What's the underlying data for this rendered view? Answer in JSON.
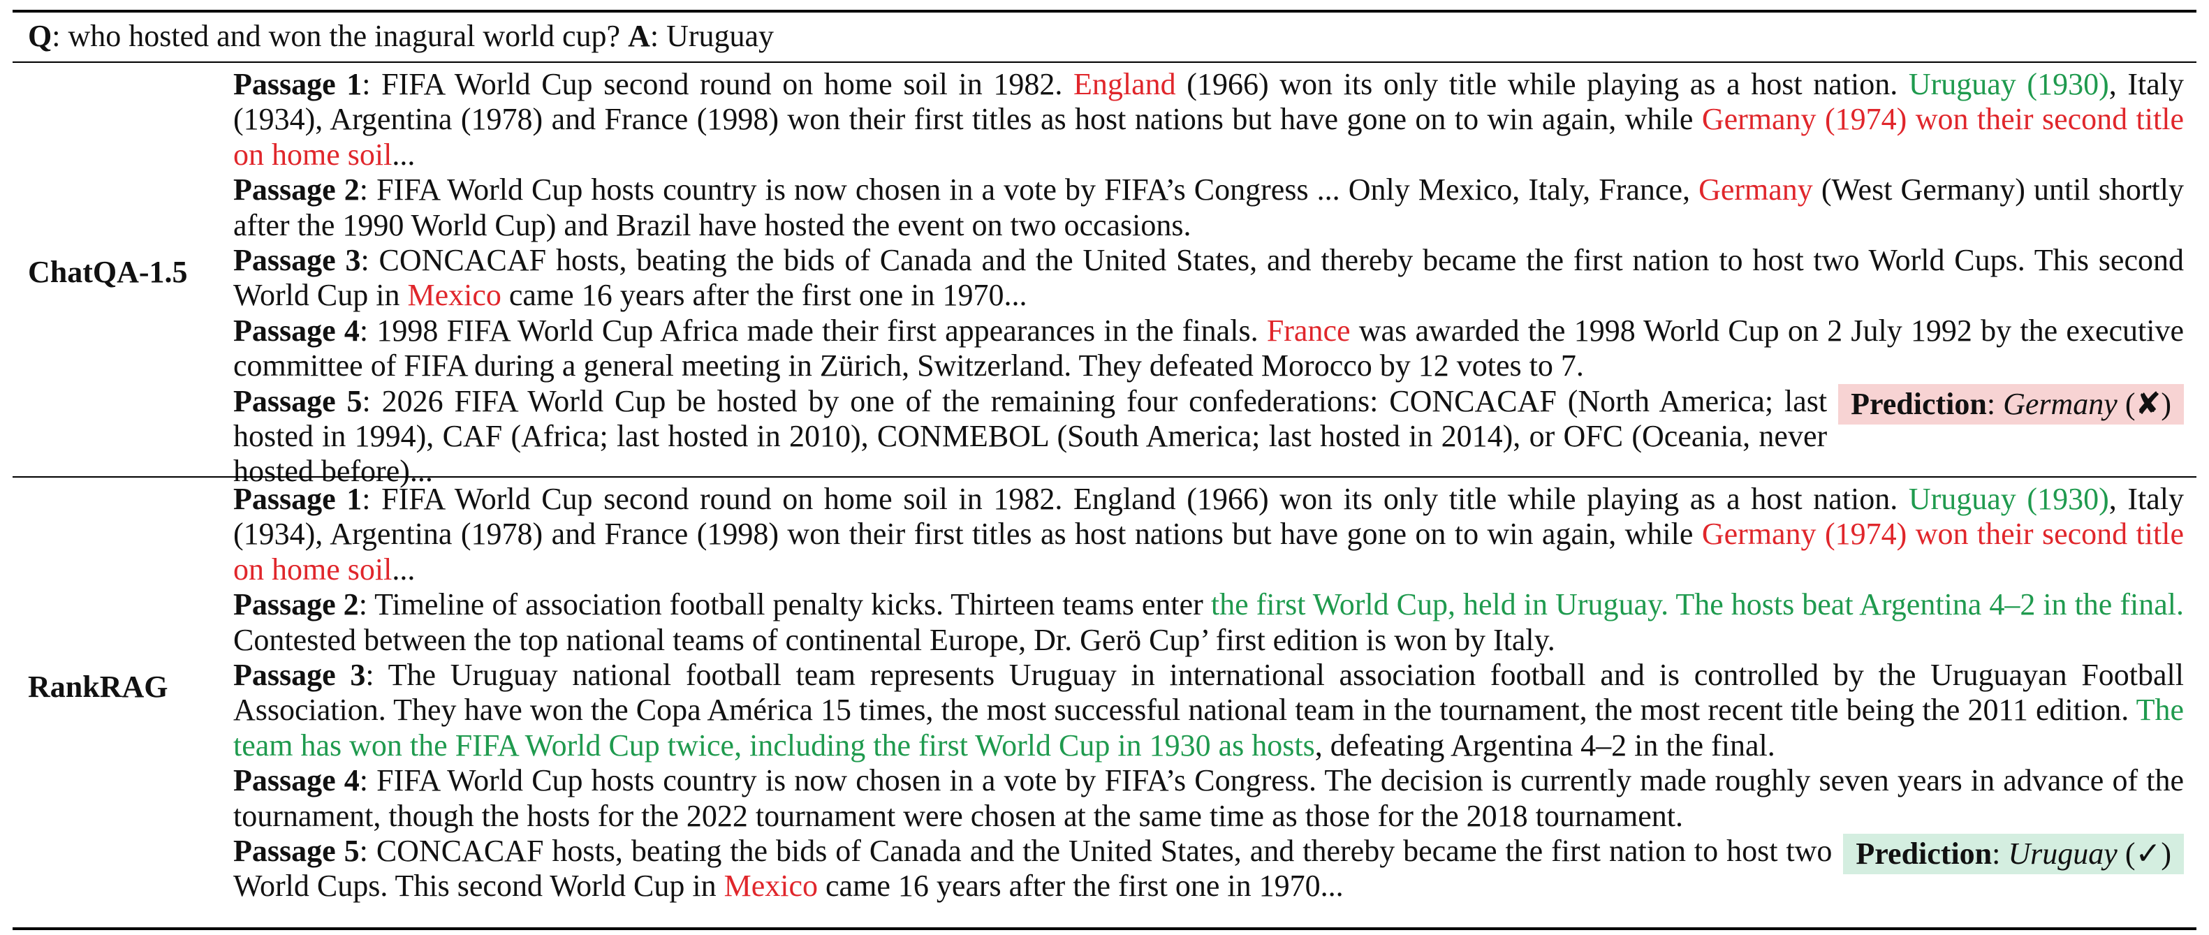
{
  "question": {
    "q_label": "Q",
    "q_text": "who hosted and won the inagural world cup?",
    "a_label": "A",
    "a_text": "Uruguay"
  },
  "prediction_label": "Prediction",
  "colors": {
    "wrong": "#e0262b",
    "correct": "#1f9a4e",
    "bad_bg": "#f7d3d3",
    "good_bg": "#d4eee0"
  },
  "sections": [
    {
      "model": "ChatQA-1.5",
      "prediction": {
        "answer": "Germany",
        "mark": "✘",
        "status": "wrong"
      },
      "passages": [
        {
          "title": "Passage 1",
          "segments": [
            {
              "t": "FIFA World Cup second round on home soil in 1982. "
            },
            {
              "t": "England",
              "c": "red"
            },
            {
              "t": " (1966) won its only title while playing as a host nation. "
            },
            {
              "t": "Uruguay (1930)",
              "c": "green"
            },
            {
              "t": ", Italy (1934), Argentina (1978) and France (1998) won their first titles as host nations but have gone on to win again, while "
            },
            {
              "t": "Germany (1974) won their second title on home soil",
              "c": "red"
            },
            {
              "t": "..."
            }
          ]
        },
        {
          "title": "Passage 2",
          "segments": [
            {
              "t": "FIFA World Cup hosts country is now chosen in a vote by FIFA’s Congress ... Only Mexico, Italy, France, "
            },
            {
              "t": "Germany",
              "c": "red"
            },
            {
              "t": " (West Germany) until shortly after the 1990 World Cup) and Brazil have hosted the event on two occasions."
            }
          ]
        },
        {
          "title": "Passage 3",
          "segments": [
            {
              "t": "CONCACAF hosts, beating the bids of Canada and the United States, and thereby became the first nation to host two World Cups. This second World Cup in "
            },
            {
              "t": "Mexico",
              "c": "red"
            },
            {
              "t": " came 16 years after the first one in 1970..."
            }
          ]
        },
        {
          "title": "Passage 4",
          "segments": [
            {
              "t": "1998 FIFA World Cup Africa made their first appearances in the finals. "
            },
            {
              "t": "France",
              "c": "red"
            },
            {
              "t": " was awarded the 1998 World Cup on 2 July 1992 by the executive committee of FIFA during a general meeting in Zürich, Switzerland. They defeated Morocco by 12 votes to 7."
            }
          ]
        },
        {
          "title": "Passage 5",
          "segments": [
            {
              "t": "2026 FIFA World Cup be hosted by one of the remaining four confederations: CONCACAF (North America; last hosted in 1994), CAF (Africa; last hosted in 2010), CONMEBOL (South America; last hosted in 2014), or OFC (Oceania, never hosted before)..."
            }
          ]
        }
      ]
    },
    {
      "model": "RankRAG",
      "prediction": {
        "answer": "Uruguay",
        "mark": "✓",
        "status": "correct"
      },
      "passages": [
        {
          "title": "Passage 1",
          "segments": [
            {
              "t": "FIFA World Cup second round on home soil in 1982. England (1966) won its only title while playing as a host nation. "
            },
            {
              "t": "Uruguay (1930)",
              "c": "green"
            },
            {
              "t": ", Italy (1934), Argentina (1978) and France (1998) won their first titles as host nations but have gone on to win again, while "
            },
            {
              "t": "Germany (1974) won their second title on home soil",
              "c": "red"
            },
            {
              "t": "..."
            }
          ]
        },
        {
          "title": "Passage 2",
          "segments": [
            {
              "t": "Timeline of association football penalty kicks. Thirteen teams enter "
            },
            {
              "t": "the first World Cup, held in Uruguay. The hosts beat Argentina 4–2 in the final.",
              "c": "green"
            },
            {
              "t": " Contested between the top national teams of continental Europe, Dr. Gerö Cup’ first edition is won by Italy."
            }
          ]
        },
        {
          "title": "Passage 3",
          "segments": [
            {
              "t": "The Uruguay national football team represents Uruguay in international association football and is controlled by the Uruguayan Football Association. They have won the Copa América 15 times, the most successful national team in the tournament, the most recent title being the 2011 edition. "
            },
            {
              "t": "The team has won the FIFA World Cup twice, including the first World Cup in 1930 as hosts",
              "c": "green"
            },
            {
              "t": ", defeating Argentina 4–2 in the final."
            }
          ]
        },
        {
          "title": "Passage 4",
          "segments": [
            {
              "t": "FIFA World Cup hosts country is now chosen in a vote by FIFA’s Congress. The decision is currently made roughly seven years in advance of the tournament, though the hosts for the 2022 tournament were chosen at the same time as those for the 2018 tournament."
            }
          ]
        },
        {
          "title": "Passage 5",
          "segments": [
            {
              "t": "CONCACAF hosts, beating the bids of Canada and the United States, and thereby became the first nation to host two World Cups. This second World Cup in "
            },
            {
              "t": "Mexico",
              "c": "red"
            },
            {
              "t": " came 16 years after the first one in 1970..."
            }
          ]
        }
      ]
    }
  ]
}
